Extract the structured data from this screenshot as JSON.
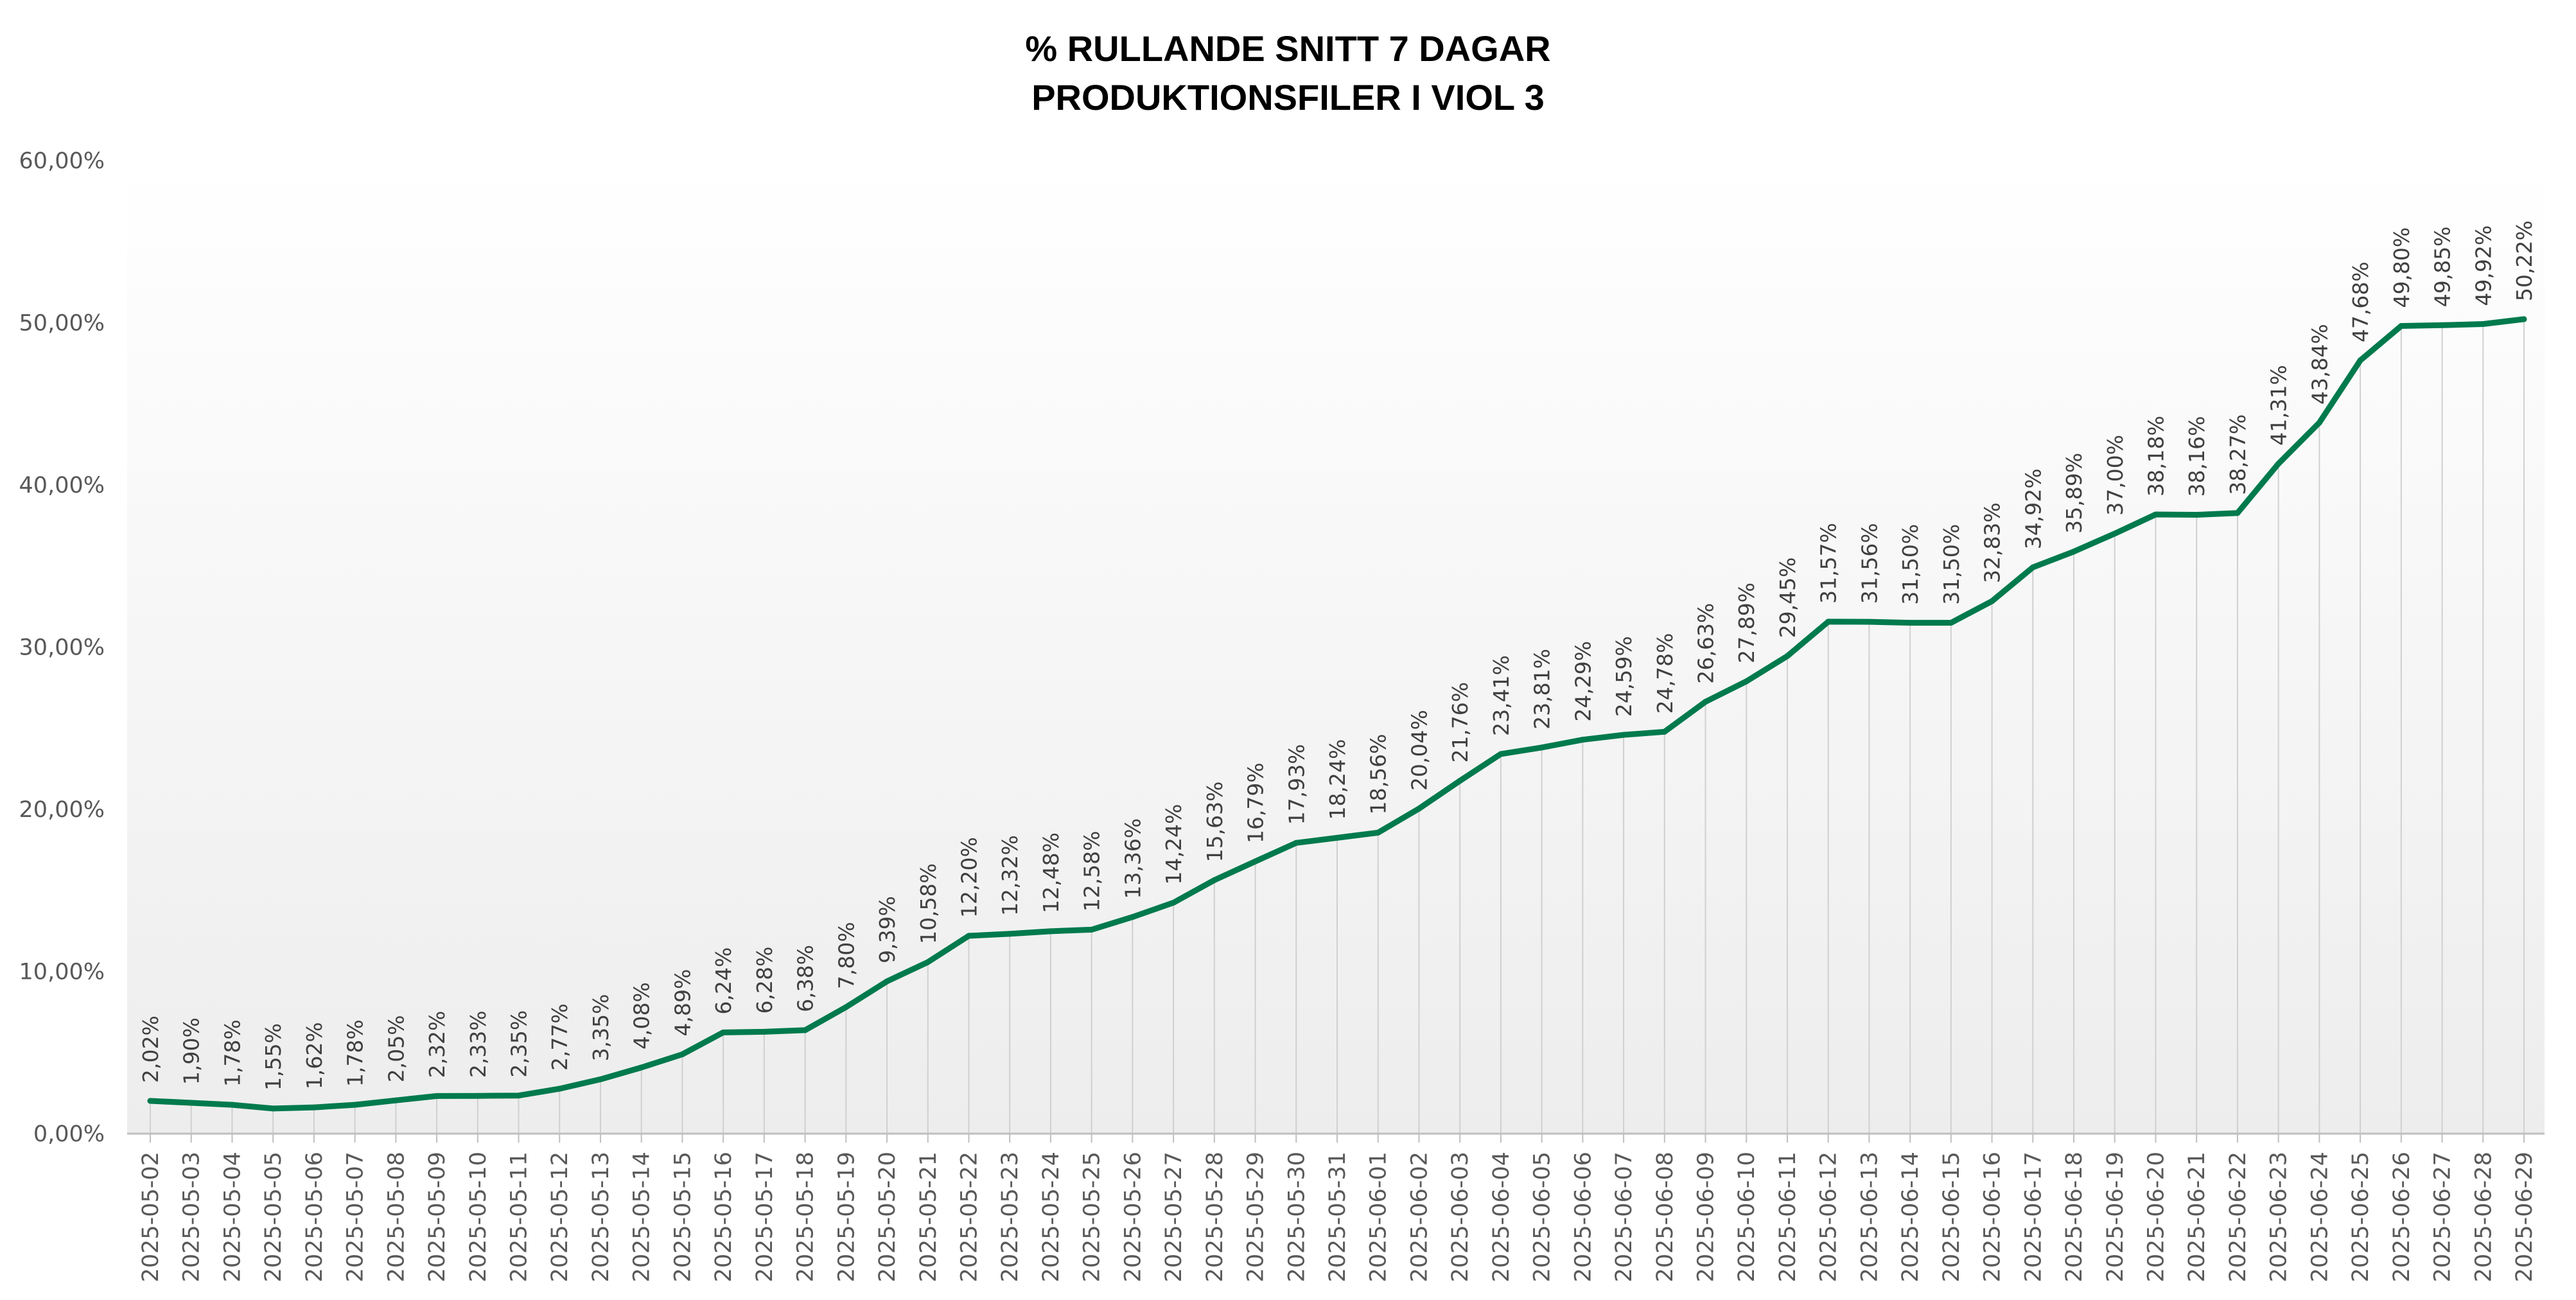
{
  "chart_data": {
    "type": "line",
    "title_line1": "% RULLANDE SNITT 7 DAGAR",
    "title_line2": "PRODUKTIONSFILER I VIOL 3",
    "xlabel": "",
    "ylabel": "",
    "ylim": [
      0,
      60
    ],
    "yticks": [
      "0,00%",
      "10,00%",
      "20,00%",
      "30,00%",
      "40,00%",
      "50,00%",
      "60,00%"
    ],
    "grid": "vertical drop lines",
    "legend": "none",
    "line_color": "#007A4D",
    "categories": [
      "2025-05-02",
      "2025-05-03",
      "2025-05-04",
      "2025-05-05",
      "2025-05-06",
      "2025-05-07",
      "2025-05-08",
      "2025-05-09",
      "2025-05-10",
      "2025-05-11",
      "2025-05-12",
      "2025-05-13",
      "2025-05-14",
      "2025-05-15",
      "2025-05-16",
      "2025-05-17",
      "2025-05-18",
      "2025-05-19",
      "2025-05-20",
      "2025-05-21",
      "2025-05-22",
      "2025-05-23",
      "2025-05-24",
      "2025-05-25",
      "2025-05-26",
      "2025-05-27",
      "2025-05-28",
      "2025-05-29",
      "2025-05-30",
      "2025-05-31",
      "2025-06-01",
      "2025-06-02",
      "2025-06-03",
      "2025-06-04",
      "2025-06-05",
      "2025-06-06",
      "2025-06-07",
      "2025-06-08",
      "2025-06-09",
      "2025-06-10",
      "2025-06-11",
      "2025-06-12",
      "2025-06-13",
      "2025-06-14",
      "2025-06-15",
      "2025-06-16",
      "2025-06-17",
      "2025-06-18",
      "2025-06-19",
      "2025-06-20",
      "2025-06-21",
      "2025-06-22",
      "2025-06-23",
      "2025-06-24",
      "2025-06-25",
      "2025-06-26",
      "2025-06-27",
      "2025-06-28",
      "2025-06-29"
    ],
    "values": [
      2.02,
      1.9,
      1.78,
      1.55,
      1.62,
      1.78,
      2.05,
      2.32,
      2.33,
      2.35,
      2.77,
      3.35,
      4.08,
      4.89,
      6.24,
      6.28,
      6.38,
      7.8,
      9.39,
      10.58,
      12.2,
      12.32,
      12.48,
      12.58,
      13.36,
      14.24,
      15.63,
      16.79,
      17.93,
      18.24,
      18.56,
      20.04,
      21.76,
      23.41,
      23.81,
      24.29,
      24.59,
      24.78,
      26.63,
      27.89,
      29.45,
      31.57,
      31.56,
      31.5,
      31.5,
      32.83,
      34.92,
      35.89,
      37.0,
      38.18,
      38.16,
      38.27,
      41.31,
      43.84,
      47.68,
      49.8,
      49.85,
      49.92,
      50.22
    ],
    "labels": [
      "2,02%",
      "1,90%",
      "1,78%",
      "1,55%",
      "1,62%",
      "1,78%",
      "2,05%",
      "2,32%",
      "2,33%",
      "2,35%",
      "2,77%",
      "3,35%",
      "4,08%",
      "4,89%",
      "6,24%",
      "6,28%",
      "6,38%",
      "7,80%",
      "9,39%",
      "10,58%",
      "12,20%",
      "12,32%",
      "12,48%",
      "12,58%",
      "13,36%",
      "14,24%",
      "15,63%",
      "16,79%",
      "17,93%",
      "18,24%",
      "18,56%",
      "20,04%",
      "21,76%",
      "23,41%",
      "23,81%",
      "24,29%",
      "24,59%",
      "24,78%",
      "26,63%",
      "27,89%",
      "29,45%",
      "31,57%",
      "31,56%",
      "31,50%",
      "31,50%",
      "32,83%",
      "34,92%",
      "35,89%",
      "37,00%",
      "38,18%",
      "38,16%",
      "38,27%",
      "41,31%",
      "43,84%",
      "47,68%",
      "49,80%",
      "49,85%",
      "49,92%",
      "50,22%"
    ]
  }
}
